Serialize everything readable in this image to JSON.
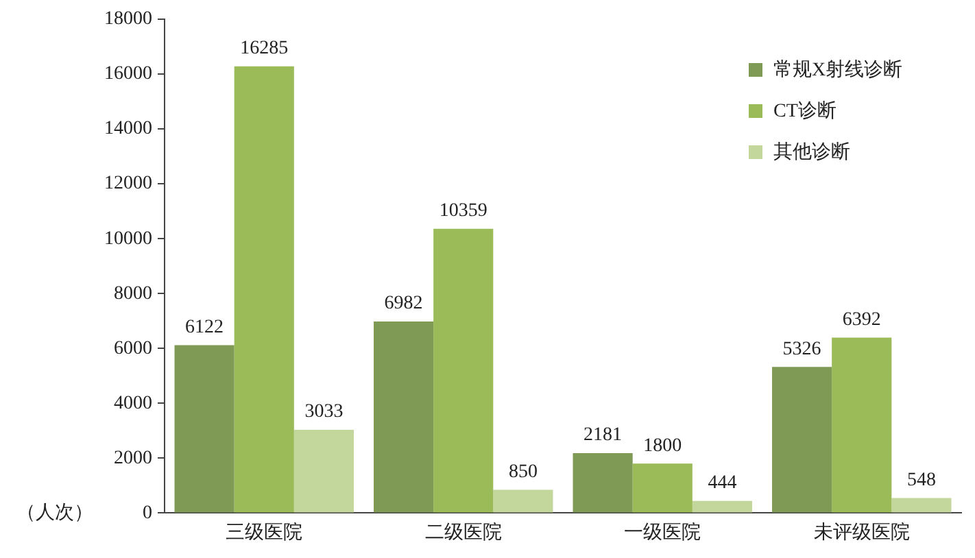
{
  "chart_data": {
    "type": "bar",
    "ylabel": "（人次）",
    "categories": [
      "三级医院",
      "二级医院",
      "一级医院",
      "未评级医院"
    ],
    "series": [
      {
        "name": "常规X射线诊断",
        "color": "#7f9a54",
        "values": [
          6122,
          6982,
          2181,
          5326
        ]
      },
      {
        "name": "CT诊断",
        "color": "#9bbb59",
        "values": [
          16285,
          10359,
          1800,
          6392
        ]
      },
      {
        "name": "其他诊断",
        "color": "#c3d69b",
        "values": [
          3033,
          850,
          444,
          548
        ]
      }
    ],
    "ylim": [
      0,
      18000
    ],
    "yticks": [
      0,
      2000,
      4000,
      6000,
      8000,
      10000,
      12000,
      14000,
      16000,
      18000
    ],
    "grid": false,
    "legend": "top right",
    "data_labels": true
  }
}
